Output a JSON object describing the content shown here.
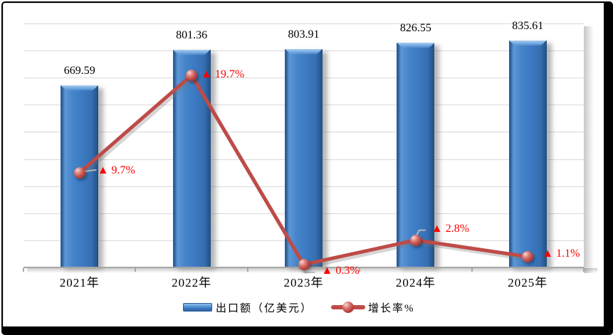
{
  "chart_data": {
    "type": "combo",
    "subtypes": [
      "bar",
      "line"
    ],
    "categories": [
      "2021年",
      "2022年",
      "2023年",
      "2024年",
      "2025年"
    ],
    "series": [
      {
        "name": "出口额（亿美元）",
        "type": "bar",
        "color": "#3d7bc4",
        "axis_range": [
          0,
          900
        ],
        "values": [
          669.59,
          801.36,
          803.91,
          826.55,
          835.61
        ],
        "data_labels": [
          "669.59",
          "801.36",
          "803.91",
          "826.55",
          "835.61"
        ]
      },
      {
        "name": "增长率%",
        "type": "line",
        "color": "#be4b48",
        "label_color": "#ff0000",
        "axis_range": [
          0,
          25
        ],
        "values": [
          9.7,
          19.7,
          0.3,
          2.8,
          1.1
        ],
        "data_labels": [
          "▲ 9.7%",
          "▲ 19.7%",
          "▲ 0.3%",
          "▲ 2.8%",
          "▲ 1.1%"
        ],
        "label_offsets": [
          [
            25,
            -3
          ],
          [
            13,
            -1
          ],
          [
            25,
            9
          ],
          [
            22,
            -16
          ],
          [
            20,
            -4
          ]
        ],
        "leaders": [
          [
            [
              8,
              -2
            ],
            [
              23,
              -4
            ]
          ],
          null,
          [
            [
              1,
              7
            ],
            [
              1,
              11
            ],
            [
              15,
              11
            ]
          ],
          [
            [
              1,
              -7
            ],
            [
              5,
              -14
            ],
            [
              13,
              -14
            ]
          ],
          null
        ]
      }
    ],
    "legend": {
      "position": "bottom",
      "items": [
        {
          "label": "出口额（亿美元）",
          "swatch": "bar"
        },
        {
          "label": "增长率%",
          "swatch": "line"
        }
      ]
    },
    "grid": {
      "horizontal_divisions": 9,
      "color": "#d9d9d9"
    },
    "axes": {
      "x_labels_visible": true,
      "y_labels_visible": false
    }
  },
  "colors": {
    "bar_main": "#3d7bc4",
    "bar_edge_dark": "#1f4e79",
    "bar_bevel_light": "#8fc0ec",
    "line": "#be4b48",
    "growth_label": "#ff0000",
    "gridline": "#d9d9d9",
    "axis": "#a6a6a6",
    "frame": "#000000",
    "background": "#ffffff"
  }
}
